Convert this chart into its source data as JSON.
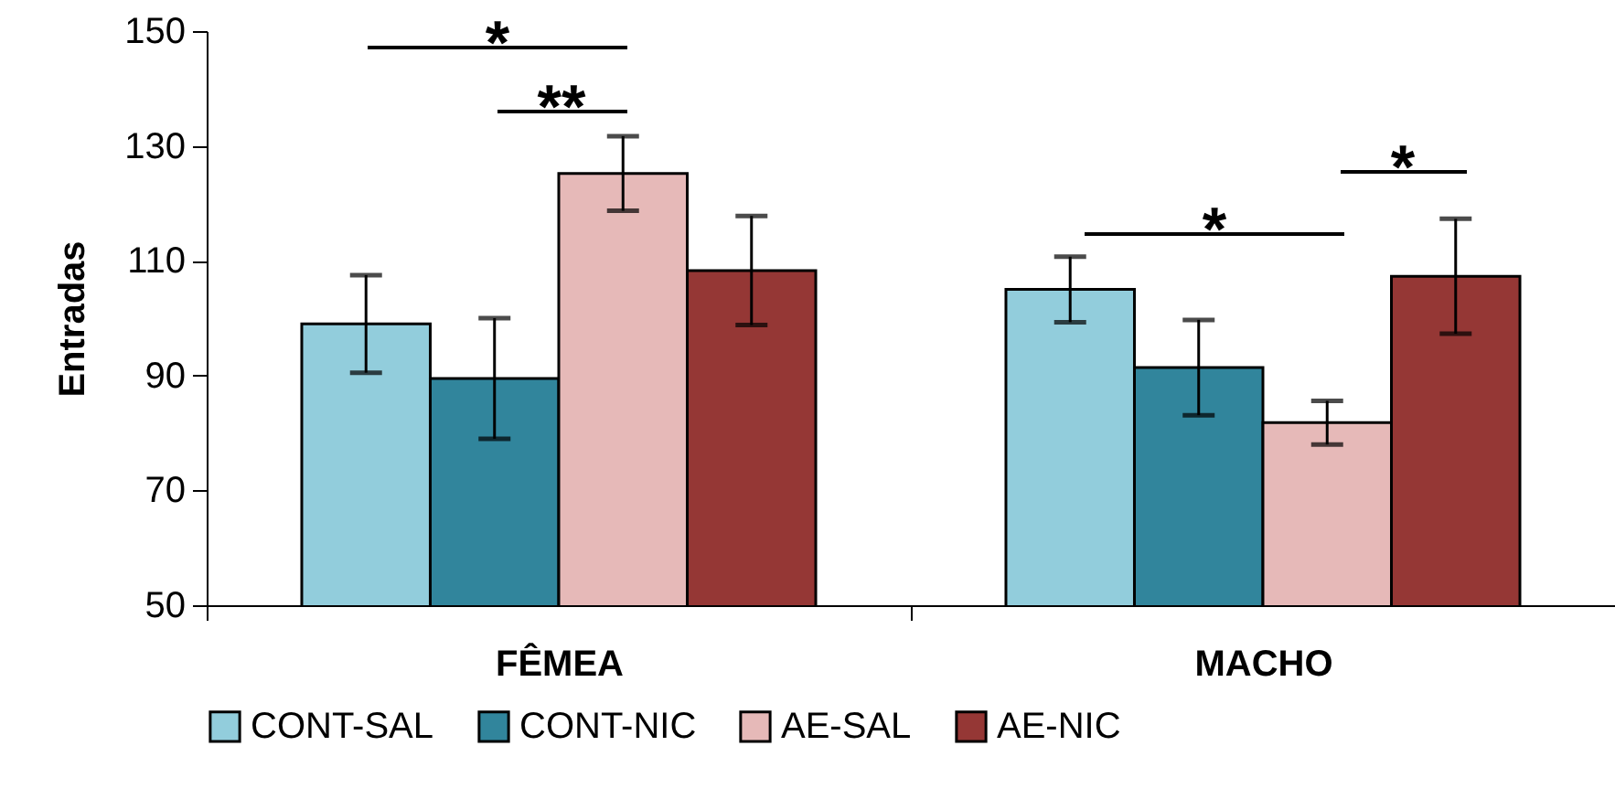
{
  "chart_data": {
    "type": "bar",
    "ylabel": "Entradas",
    "categories": [
      "FÊMEA",
      "MACHO"
    ],
    "series": [
      {
        "name": "CONT-SAL",
        "color": "#92cddc",
        "values": [
          99,
          105
        ],
        "errors": [
          8.5,
          5.7
        ]
      },
      {
        "name": "CONT-NIC",
        "color": "#31859c",
        "values": [
          89.5,
          91.4
        ],
        "errors": [
          10.5,
          8.3
        ]
      },
      {
        "name": "AE-SAL",
        "color": "#e6b9b8",
        "values": [
          125.2,
          81.8
        ],
        "errors": [
          6.5,
          3.8
        ]
      },
      {
        "name": "AE-NIC",
        "color": "#953735",
        "values": [
          108.3,
          107.3
        ],
        "errors": [
          9.5,
          10
        ]
      }
    ],
    "ylim": [
      50,
      150
    ],
    "yticks": [
      50,
      70,
      90,
      110,
      130,
      150
    ],
    "grid": false,
    "legend": "bottom",
    "annotations": [
      "*",
      "**",
      "*",
      "*"
    ]
  }
}
